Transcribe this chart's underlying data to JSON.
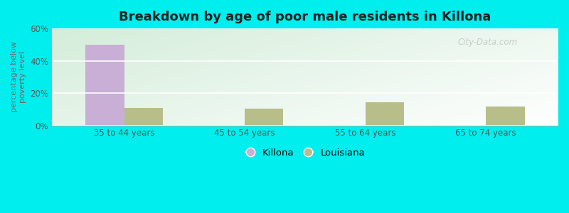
{
  "title": "Breakdown by age of poor male residents in Killona",
  "categories": [
    "35 to 44 years",
    "45 to 54 years",
    "55 to 64 years",
    "65 to 74 years"
  ],
  "killona_values": [
    50.0,
    0.0,
    0.0,
    0.0
  ],
  "louisiana_values": [
    11.0,
    10.5,
    14.5,
    11.5
  ],
  "killona_color": "#c9aed6",
  "louisiana_color": "#b8be8a",
  "ylabel": "percentage below\npoverty level",
  "ylim": [
    0,
    60
  ],
  "yticks": [
    0,
    20,
    40,
    60
  ],
  "ytick_labels": [
    "0%",
    "20%",
    "40%",
    "60%"
  ],
  "bar_width": 0.32,
  "outer_bg": "#00eeee",
  "watermark": "City-Data.com",
  "legend_labels": [
    "Killona",
    "Louisiana"
  ],
  "bg_top_left": "#d4edda",
  "bg_bottom_right": "#f0fff0"
}
